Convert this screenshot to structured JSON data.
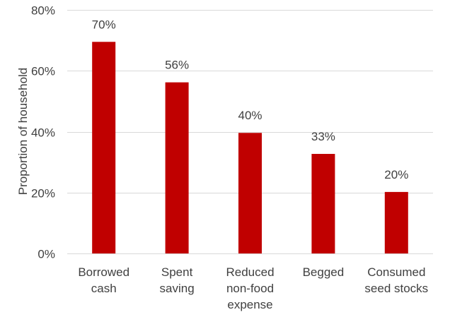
{
  "chart_data": {
    "type": "bar",
    "title": "",
    "xlabel": "",
    "ylabel": "Proportion of household",
    "categories": [
      [
        "Borrowed",
        "cash"
      ],
      [
        "Spent",
        "saving"
      ],
      [
        "Reduced",
        "non-food",
        "expense"
      ],
      [
        "Begged"
      ],
      [
        "Consumed",
        "seed stocks"
      ]
    ],
    "values": [
      0.695,
      0.562,
      0.396,
      0.327,
      0.202
    ],
    "data_labels": [
      "70%",
      "56%",
      "40%",
      "33%",
      "20%"
    ],
    "y_ticks": [
      0,
      0.2,
      0.4,
      0.6,
      0.8
    ],
    "y_tick_labels": [
      "0%",
      "20%",
      "40%",
      "60%",
      "80%"
    ],
    "ylim": [
      0,
      0.8
    ],
    "grid": true,
    "legend": "none",
    "colors": {
      "bar": "#C00000",
      "grid": "#D9D9D9",
      "text": "#404040"
    }
  }
}
